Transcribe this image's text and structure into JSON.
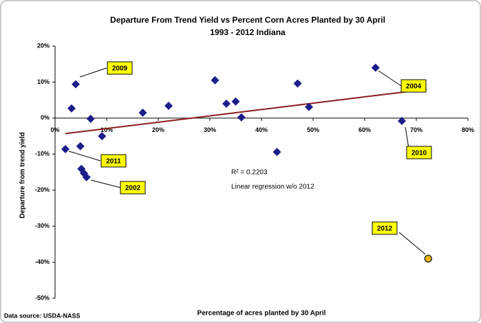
{
  "chart_data": {
    "type": "scatter",
    "title": "Departure From Trend Yield vs Percent Corn Acres Planted by 30 April",
    "subtitle": "1993 - 2012 Indiana",
    "xlabel": "Percentage of acres planted by 30 April",
    "ylabel": "Departure from trend yield",
    "source": "Data source: USDA-NASS",
    "xlim": [
      0,
      80
    ],
    "ylim": [
      -50,
      20
    ],
    "xticks": [
      {
        "value": 0,
        "label": "0%"
      },
      {
        "value": 10,
        "label": "10%"
      },
      {
        "value": 20,
        "label": "20%"
      },
      {
        "value": 30,
        "label": "30%"
      },
      {
        "value": 40,
        "label": "40%"
      },
      {
        "value": 50,
        "label": "50%"
      },
      {
        "value": 60,
        "label": "60%"
      },
      {
        "value": 70,
        "label": "70%"
      },
      {
        "value": 80,
        "label": "80%"
      }
    ],
    "yticks": [
      {
        "value": -50,
        "label": "-50%"
      },
      {
        "value": -40,
        "label": "-40%"
      },
      {
        "value": -30,
        "label": "-30%"
      },
      {
        "value": -20,
        "label": "-20%"
      },
      {
        "value": -10,
        "label": "-10%"
      },
      {
        "value": 0,
        "label": "0%"
      },
      {
        "value": 10,
        "label": "10%"
      },
      {
        "value": 20,
        "label": "20%"
      }
    ],
    "series": [
      {
        "color": "#1c1c8a",
        "marker": "diamond",
        "x": [
          2,
          3.2,
          4,
          4.9,
          5.1,
          5.6,
          6.1,
          6.9,
          9.1,
          17,
          22,
          31,
          33.2,
          35,
          36.1,
          43,
          47,
          49.2,
          62.1,
          67.2
        ],
        "values": [
          -8.6,
          2.7,
          9.4,
          -7.8,
          -14.1,
          -15.3,
          -16.4,
          -0.2,
          -5,
          1.5,
          3.4,
          10.5,
          4,
          4.6,
          0.2,
          -9.4,
          9.6,
          3.1,
          14,
          -0.8
        ]
      },
      {
        "color": "#f2b300",
        "marker": "circle",
        "x": [
          72.3
        ],
        "values": [
          -39
        ]
      }
    ],
    "trendline": {
      "color": "#8b1a1a",
      "x": [
        2,
        72
      ],
      "y": [
        -4.3,
        8
      ]
    },
    "annotations": [
      {
        "text": "2009"
      },
      {
        "text": "2004"
      },
      {
        "text": "2011"
      },
      {
        "text": "2002"
      },
      {
        "text": "2010"
      },
      {
        "text": "2012"
      }
    ],
    "notes": [
      "R² = 0.2203",
      "Linear regression w/o 2012"
    ]
  }
}
